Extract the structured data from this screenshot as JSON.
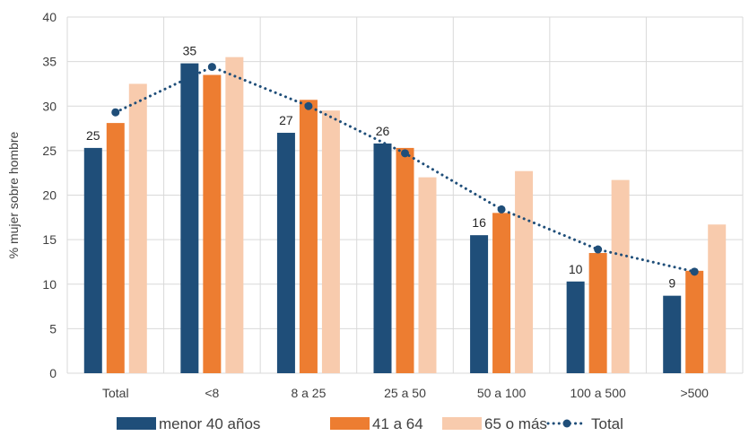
{
  "chart_data": {
    "type": "bar",
    "ylabel": "% mujer sobre hombre",
    "ylim": [
      0,
      40
    ],
    "ytick_step": 5,
    "grid": true,
    "legend_position": "bottom",
    "categories": [
      "Total",
      "<8",
      "8 a 25",
      "25 a 50",
      "50 a 100",
      "100 a 500",
      ">500"
    ],
    "series": [
      {
        "name": "menor 40 años",
        "kind": "bar",
        "color": "#1f4e79",
        "values": [
          25.3,
          34.8,
          27.0,
          25.8,
          15.5,
          10.3,
          8.7
        ],
        "data_labels": [
          "25",
          "35",
          "27",
          "26",
          "16",
          "10",
          "9"
        ]
      },
      {
        "name": "41 a 64",
        "kind": "bar",
        "color": "#ed7d31",
        "values": [
          28.1,
          33.5,
          30.7,
          25.3,
          18.0,
          13.5,
          11.5
        ]
      },
      {
        "name": "65 o más",
        "kind": "bar",
        "color": "#f8cbad",
        "values": [
          32.5,
          35.5,
          29.5,
          22.0,
          22.7,
          21.7,
          16.7
        ]
      },
      {
        "name": "Total",
        "kind": "line",
        "color": "#1f4e79",
        "line_style": "dotted",
        "values": [
          29.3,
          34.4,
          30.0,
          24.7,
          18.4,
          13.9,
          11.4
        ]
      }
    ]
  }
}
